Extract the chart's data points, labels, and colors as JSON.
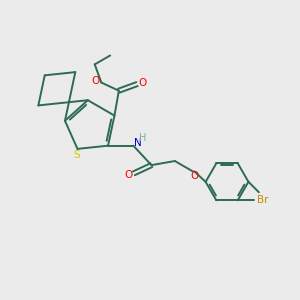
{
  "bg_color": "#ebebeb",
  "bond_color": "#2d6b52",
  "S_color": "#cccc00",
  "O_color": "#ff0000",
  "N_color": "#0000cc",
  "Br_color": "#cc8800",
  "H_color": "#7ab0b0",
  "lw": 1.4,
  "fig_w": 3.0,
  "fig_h": 3.0,
  "xlim": [
    0,
    10
  ],
  "ylim": [
    0,
    10
  ]
}
